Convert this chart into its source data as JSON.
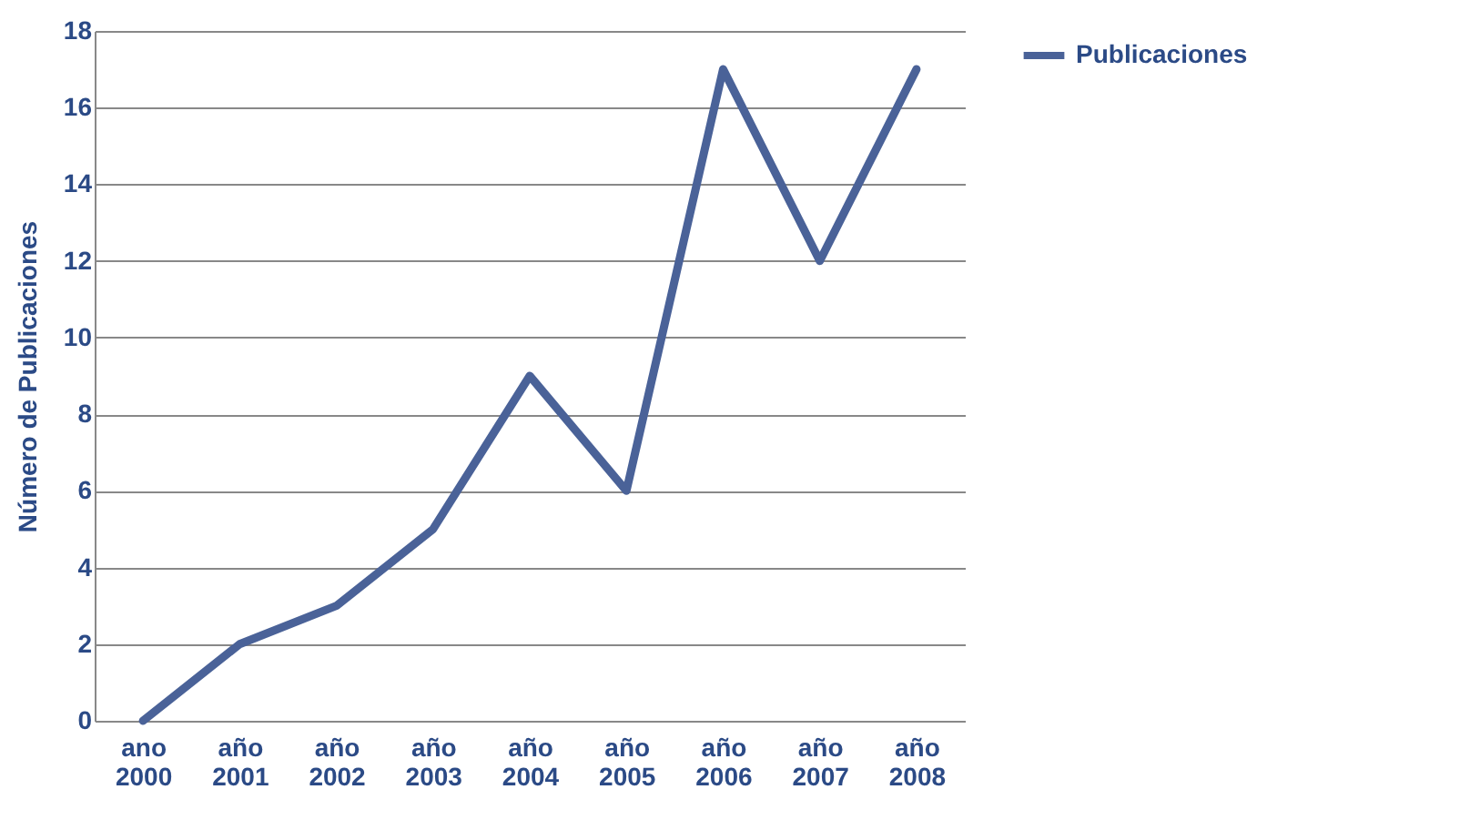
{
  "chart_data": {
    "type": "line",
    "ylabel": "Número de Publicaciones",
    "categories": [
      "ano 2000",
      "año 2001",
      "año 2002",
      "año 2003",
      "año 2004",
      "año 2005",
      "año 2006",
      "año 2007",
      "año 2008"
    ],
    "series": [
      {
        "name": "Publicaciones",
        "color": "#4a6298",
        "values": [
          0,
          2,
          3,
          5,
          9,
          6,
          17,
          12,
          17
        ]
      }
    ],
    "ylim": [
      0,
      18
    ],
    "yticks": [
      0,
      2,
      4,
      6,
      8,
      10,
      12,
      14,
      16,
      18
    ],
    "grid": "y",
    "legend": "right",
    "marker": "none",
    "line_style": "solid"
  }
}
